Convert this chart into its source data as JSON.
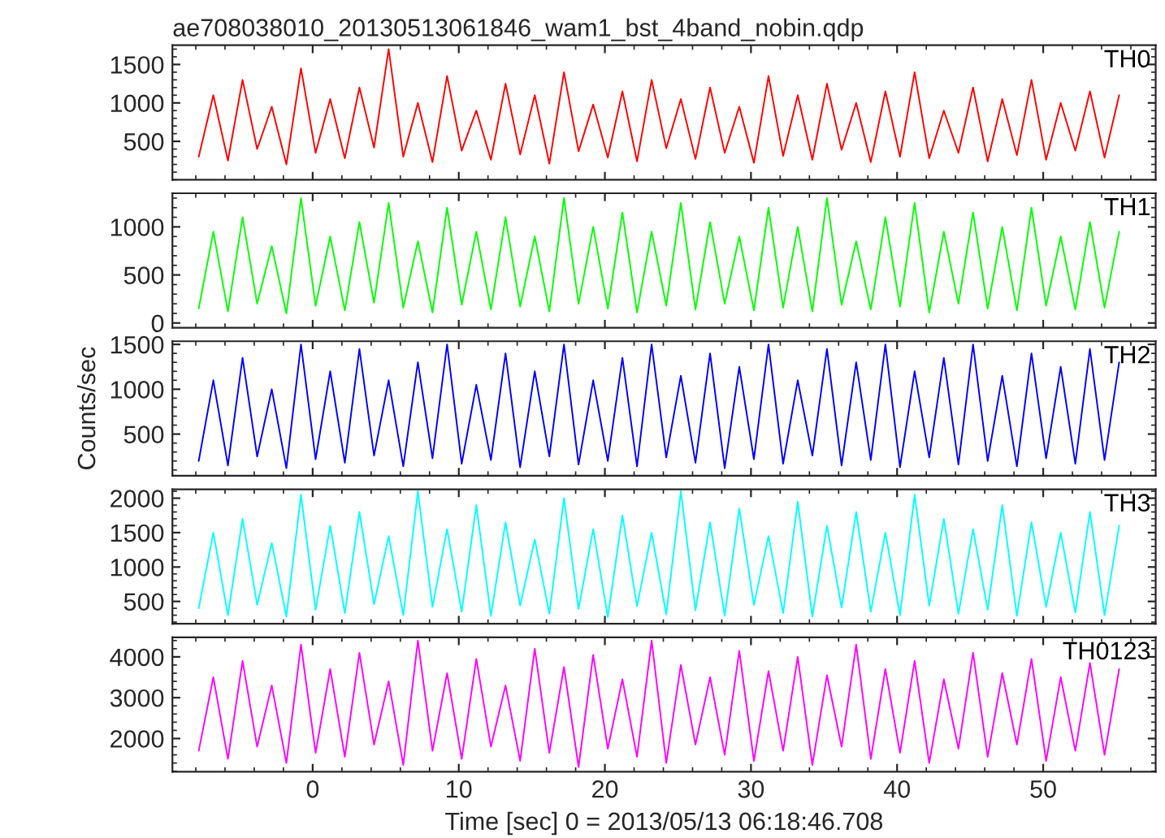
{
  "chart_data": [
    {
      "type": "line",
      "title": "ae708038010_20130513061846_wam1_bst_4band_nobin.qdp",
      "tick_labels": "y",
      "xlim": [
        -9.6,
        57.7
      ],
      "xticks": [
        0,
        10,
        20,
        30,
        40,
        50
      ],
      "ylim": [
        0,
        1750
      ],
      "yticks": [
        500,
        1000,
        1500
      ],
      "x": [
        -7.8,
        -6.8,
        -5.8,
        -4.8,
        -3.8,
        -2.8,
        -1.8,
        -0.8,
        0.2,
        1.2,
        2.2,
        3.2,
        4.2,
        5.2,
        6.2,
        7.2,
        8.2,
        9.2,
        10.2,
        11.2,
        12.2,
        13.2,
        14.2,
        15.2,
        16.2,
        17.2,
        18.2,
        19.2,
        20.2,
        21.2,
        22.2,
        23.2,
        24.2,
        25.2,
        26.2,
        27.2,
        28.2,
        29.2,
        30.2,
        31.2,
        32.2,
        33.2,
        34.2,
        35.2,
        36.2,
        37.2,
        38.2,
        39.2,
        40.2,
        41.2,
        42.2,
        43.2,
        44.2,
        45.2,
        46.2,
        47.2,
        48.2,
        49.2,
        50.2,
        51.2,
        52.2,
        53.2,
        54.2,
        55.2
      ],
      "series": [
        {
          "name": "TH0",
          "color": "#ff0000",
          "values": [
            300,
            1100,
            250,
            1300,
            400,
            950,
            200,
            1450,
            350,
            1050,
            280,
            1200,
            420,
            1700,
            300,
            1000,
            230,
            1350,
            380,
            900,
            260,
            1250,
            330,
            1100,
            210,
            1400,
            370,
            980,
            290,
            1150,
            240,
            1300,
            410,
            1050,
            270,
            1200,
            350,
            950,
            220,
            1350,
            310,
            1100,
            260,
            1250,
            390,
            1000,
            230,
            1150,
            300,
            1400,
            280,
            900,
            350,
            1200,
            240,
            1050,
            320,
            1300,
            260,
            1000,
            380,
            1150,
            290,
            1100
          ]
        }
      ]
    },
    {
      "type": "line",
      "tick_labels": "y",
      "xlim": [
        -9.6,
        57.7
      ],
      "xticks": [
        0,
        10,
        20,
        30,
        40,
        50
      ],
      "ylim": [
        -50,
        1350
      ],
      "yticks": [
        0,
        500,
        1000
      ],
      "x": [
        -7.8,
        -6.8,
        -5.8,
        -4.8,
        -3.8,
        -2.8,
        -1.8,
        -0.8,
        0.2,
        1.2,
        2.2,
        3.2,
        4.2,
        5.2,
        6.2,
        7.2,
        8.2,
        9.2,
        10.2,
        11.2,
        12.2,
        13.2,
        14.2,
        15.2,
        16.2,
        17.2,
        18.2,
        19.2,
        20.2,
        21.2,
        22.2,
        23.2,
        24.2,
        25.2,
        26.2,
        27.2,
        28.2,
        29.2,
        30.2,
        31.2,
        32.2,
        33.2,
        34.2,
        35.2,
        36.2,
        37.2,
        38.2,
        39.2,
        40.2,
        41.2,
        42.2,
        43.2,
        44.2,
        45.2,
        46.2,
        47.2,
        48.2,
        49.2,
        50.2,
        51.2,
        52.2,
        53.2,
        54.2,
        55.2
      ],
      "series": [
        {
          "name": "TH1",
          "color": "#00ff00",
          "values": [
            150,
            950,
            120,
            1100,
            200,
            800,
            100,
            1300,
            180,
            900,
            130,
            1050,
            210,
            1250,
            160,
            850,
            110,
            1200,
            190,
            950,
            140,
            1100,
            170,
            900,
            120,
            1300,
            200,
            1000,
            150,
            1150,
            110,
            950,
            180,
            1250,
            140,
            1050,
            200,
            900,
            130,
            1200,
            160,
            1000,
            120,
            1300,
            190,
            850,
            140,
            1100,
            170,
            1250,
            110,
            950,
            200,
            1150,
            150,
            1000,
            130,
            1200,
            180,
            900,
            140,
            1050,
            160,
            950
          ]
        }
      ]
    },
    {
      "type": "line",
      "tick_labels": "y",
      "ylabel": "Counts/sec",
      "xlim": [
        -9.6,
        57.7
      ],
      "xticks": [
        0,
        10,
        20,
        30,
        40,
        50
      ],
      "ylim": [
        35,
        1535
      ],
      "yticks": [
        500,
        1000,
        1500
      ],
      "x": [
        -7.8,
        -6.8,
        -5.8,
        -4.8,
        -3.8,
        -2.8,
        -1.8,
        -0.8,
        0.2,
        1.2,
        2.2,
        3.2,
        4.2,
        5.2,
        6.2,
        7.2,
        8.2,
        9.2,
        10.2,
        11.2,
        12.2,
        13.2,
        14.2,
        15.2,
        16.2,
        17.2,
        18.2,
        19.2,
        20.2,
        21.2,
        22.2,
        23.2,
        24.2,
        25.2,
        26.2,
        27.2,
        28.2,
        29.2,
        30.2,
        31.2,
        32.2,
        33.2,
        34.2,
        35.2,
        36.2,
        37.2,
        38.2,
        39.2,
        40.2,
        41.2,
        42.2,
        43.2,
        44.2,
        45.2,
        46.2,
        47.2,
        48.2,
        49.2,
        50.2,
        51.2,
        52.2,
        53.2,
        54.2,
        55.2
      ],
      "series": [
        {
          "name": "TH2",
          "color": "#0000ff",
          "values": [
            200,
            1100,
            150,
            1350,
            250,
            1000,
            120,
            1500,
            220,
            1200,
            180,
            1450,
            260,
            1100,
            140,
            1300,
            230,
            1500,
            170,
            1050,
            210,
            1400,
            130,
            1200,
            250,
            1500,
            160,
            1100,
            200,
            1350,
            140,
            1500,
            240,
            1150,
            180,
            1400,
            120,
            1250,
            220,
            1500,
            170,
            1100,
            260,
            1450,
            150,
            1300,
            210,
            1500,
            130,
            1200,
            240,
            1350,
            160,
            1500,
            200,
            1150,
            140,
            1400,
            230,
            1250,
            170,
            1450,
            210,
            1300
          ]
        }
      ]
    },
    {
      "type": "line",
      "tick_labels": "y",
      "xlim": [
        -9.6,
        57.7
      ],
      "xticks": [
        0,
        10,
        20,
        30,
        40,
        50
      ],
      "ylim": [
        175,
        2130
      ],
      "yticks": [
        500,
        1000,
        1500,
        2000
      ],
      "x": [
        -7.8,
        -6.8,
        -5.8,
        -4.8,
        -3.8,
        -2.8,
        -1.8,
        -0.8,
        0.2,
        1.2,
        2.2,
        3.2,
        4.2,
        5.2,
        6.2,
        7.2,
        8.2,
        9.2,
        10.2,
        11.2,
        12.2,
        13.2,
        14.2,
        15.2,
        16.2,
        17.2,
        18.2,
        19.2,
        20.2,
        21.2,
        22.2,
        23.2,
        24.2,
        25.2,
        26.2,
        27.2,
        28.2,
        29.2,
        30.2,
        31.2,
        32.2,
        33.2,
        34.2,
        35.2,
        36.2,
        37.2,
        38.2,
        39.2,
        40.2,
        41.2,
        42.2,
        43.2,
        44.2,
        45.2,
        46.2,
        47.2,
        48.2,
        49.2,
        50.2,
        51.2,
        52.2,
        53.2,
        54.2,
        55.2
      ],
      "series": [
        {
          "name": "TH3",
          "color": "#00ffff",
          "values": [
            400,
            1500,
            300,
            1700,
            450,
            1350,
            280,
            2050,
            380,
            1600,
            330,
            1800,
            460,
            1450,
            300,
            2100,
            420,
            1550,
            350,
            1900,
            290,
            1650,
            440,
            1400,
            320,
            2000,
            390,
            1550,
            270,
            1750,
            430,
            1500,
            310,
            2100,
            370,
            1650,
            290,
            1850,
            450,
            1450,
            330,
            1950,
            280,
            1600,
            410,
            1800,
            350,
            1500,
            300,
            2050,
            440,
            1700,
            320,
            1550,
            380,
            1900,
            290,
            1650,
            420,
            1500,
            340,
            1800,
            300,
            1600
          ]
        }
      ]
    },
    {
      "type": "line",
      "xlabel": "Time [sec] 0 = 2013/05/13 06:18:46.708",
      "xlim": [
        -9.6,
        57.7
      ],
      "xticks": [
        0,
        10,
        20,
        30,
        40,
        50
      ],
      "ylim": [
        1185,
        4480
      ],
      "yticks": [
        2000,
        3000,
        4000
      ],
      "x": [
        -7.8,
        -6.8,
        -5.8,
        -4.8,
        -3.8,
        -2.8,
        -1.8,
        -0.8,
        0.2,
        1.2,
        2.2,
        3.2,
        4.2,
        5.2,
        6.2,
        7.2,
        8.2,
        9.2,
        10.2,
        11.2,
        12.2,
        13.2,
        14.2,
        15.2,
        16.2,
        17.2,
        18.2,
        19.2,
        20.2,
        21.2,
        22.2,
        23.2,
        24.2,
        25.2,
        26.2,
        27.2,
        28.2,
        29.2,
        30.2,
        31.2,
        32.2,
        33.2,
        34.2,
        35.2,
        36.2,
        37.2,
        38.2,
        39.2,
        40.2,
        41.2,
        42.2,
        43.2,
        44.2,
        45.2,
        46.2,
        47.2,
        48.2,
        49.2,
        50.2,
        51.2,
        52.2,
        53.2,
        54.2,
        55.2
      ],
      "series": [
        {
          "name": "TH0123",
          "color": "#ff00ff",
          "values": [
            1700,
            3500,
            1500,
            3900,
            1800,
            3300,
            1400,
            4300,
            1650,
            3700,
            1550,
            4100,
            1850,
            3400,
            1350,
            4400,
            1700,
            3600,
            1500,
            3950,
            1800,
            3300,
            1450,
            4200,
            1650,
            3750,
            1300,
            4050,
            1750,
            3450,
            1550,
            4400,
            1400,
            3800,
            1850,
            3500,
            1600,
            4150,
            1450,
            3650,
            1700,
            4000,
            1350,
            3550,
            1800,
            4300,
            1500,
            3700,
            1650,
            3900,
            1400,
            3450,
            1750,
            4100,
            1550,
            3600,
            1850,
            3950,
            1450,
            3500,
            1700,
            3850,
            1600,
            3700
          ]
        }
      ]
    }
  ]
}
